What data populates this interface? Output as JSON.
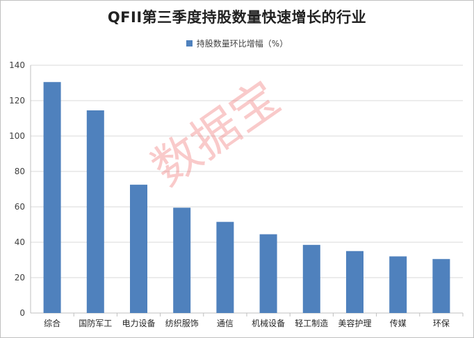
{
  "chart_data": {
    "type": "bar",
    "title": "QFII第三季度持股数量快速增长的行业",
    "legend_position": "top",
    "series": [
      {
        "name": "持股数量环比增幅（%）",
        "color": "#4f81bd",
        "values": [
          130.5,
          114.5,
          72.5,
          59.5,
          51.5,
          44.5,
          38.5,
          35,
          32,
          30.5
        ]
      }
    ],
    "categories": [
      "综合",
      "国防军工",
      "电力设备",
      "纺织服饰",
      "通信",
      "机械设备",
      "轻工制造",
      "美容护理",
      "传媒",
      "环保"
    ],
    "ylim": [
      0,
      140
    ],
    "yticks": [
      "0",
      "20",
      "40",
      "60",
      "80",
      "100",
      "120",
      "140"
    ],
    "grid": true
  },
  "watermark": "数据宝"
}
